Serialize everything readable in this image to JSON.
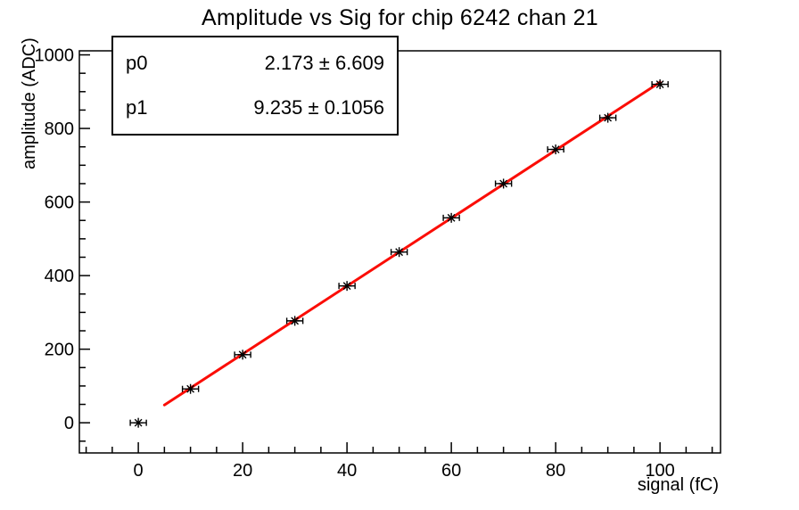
{
  "plot": {
    "title": "Amplitude vs Sig for chip 6242 chan 21",
    "x_title": "signal (fC)",
    "y_title": "amplitude (ADC)"
  },
  "stats_box": {
    "rows": [
      {
        "name": "p0",
        "value": "2.173 ± 6.609"
      },
      {
        "name": "p1",
        "value": "9.235 ± 0.1056"
      }
    ]
  },
  "colors": {
    "background": "#ffffff",
    "frame": "#000000",
    "marker": "#000000",
    "fit_line": "#fb0d06",
    "text": "#000000"
  },
  "chart_data": {
    "type": "scatter",
    "title": "Amplitude vs Sig for chip 6242 chan 21",
    "xlabel": "signal (fC)",
    "ylabel": "amplitude (ADC)",
    "x": [
      0,
      10,
      20,
      30,
      40,
      50,
      60,
      70,
      80,
      90,
      100
    ],
    "y": [
      0,
      92,
      185,
      277,
      372,
      464,
      557,
      650,
      743,
      829,
      920
    ],
    "x_error": 1.2,
    "marker": "asterisk-with-x-error-bars",
    "xlim": [
      -11.3,
      111.6
    ],
    "ylim": [
      -82,
      1011
    ],
    "x_ticks": [
      0,
      20,
      40,
      60,
      80,
      100
    ],
    "y_ticks": [
      0,
      200,
      400,
      600,
      800,
      1000
    ],
    "x_minor_step": 5,
    "y_minor_step": 50,
    "grid": false,
    "legend_position": "none",
    "fit": {
      "type": "linear",
      "p0": 2.173,
      "p1": 9.235,
      "p0_error": 6.609,
      "p1_error": 0.1056,
      "x_range": [
        5,
        100
      ],
      "color": "#fb0d06"
    }
  }
}
